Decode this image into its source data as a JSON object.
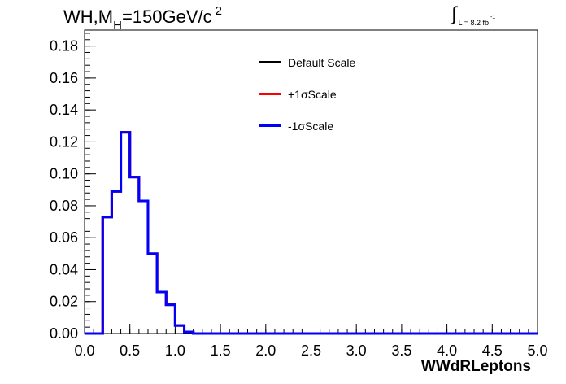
{
  "title": {
    "main": "WH,M",
    "subscript": "H",
    "value": "=150GeV/c",
    "superscript": "2"
  },
  "luminosity": {
    "integral_symbol": "∫",
    "text": "L = 8.2 fb",
    "exponent": "-1"
  },
  "colors": {
    "default": "#000000",
    "plus": "#ff0000",
    "minus": "#0000ff",
    "axis": "#000000"
  },
  "legend": [
    {
      "label": "Default Scale",
      "color": "#000000"
    },
    {
      "label": "+1σScale",
      "color": "#ff0000"
    },
    {
      "label": "-1σScale",
      "color": "#0000ff"
    }
  ],
  "chart_data": {
    "type": "line",
    "style": "step-histogram",
    "title": "WH,MH=150GeV/c2",
    "xlabel": "WWdRLeptons",
    "ylabel": "",
    "xlim": [
      0.0,
      5.0
    ],
    "ylim": [
      0.0,
      0.19
    ],
    "xticks": [
      "0.0",
      "0.5",
      "1.0",
      "1.5",
      "2.0",
      "2.5",
      "3.0",
      "3.5",
      "4.0",
      "4.5",
      "5.0"
    ],
    "yticks": [
      "0.00",
      "0.02",
      "0.04",
      "0.06",
      "0.08",
      "0.10",
      "0.12",
      "0.14",
      "0.16",
      "0.18"
    ],
    "bin_width": 0.1,
    "bin_edges_start": 0.0,
    "series": [
      {
        "name": "Default Scale",
        "color": "#000000",
        "values": [
          0,
          0,
          0.073,
          0.089,
          0.126,
          0.098,
          0.083,
          0.05,
          0.026,
          0.018,
          0.005,
          0.001,
          0,
          0,
          0,
          0,
          0,
          0,
          0,
          0,
          0,
          0,
          0,
          0,
          0,
          0,
          0,
          0,
          0,
          0,
          0,
          0,
          0,
          0,
          0,
          0,
          0,
          0,
          0,
          0,
          0,
          0,
          0,
          0,
          0,
          0,
          0,
          0,
          0,
          0
        ]
      },
      {
        "name": "+1σScale",
        "color": "#ff0000",
        "values": [
          0,
          0,
          0.073,
          0.089,
          0.126,
          0.098,
          0.083,
          0.05,
          0.026,
          0.018,
          0.005,
          0.001,
          0,
          0,
          0,
          0,
          0,
          0,
          0,
          0,
          0,
          0,
          0,
          0,
          0,
          0,
          0,
          0,
          0,
          0,
          0,
          0,
          0,
          0,
          0,
          0,
          0,
          0,
          0,
          0,
          0,
          0,
          0,
          0,
          0,
          0,
          0,
          0,
          0,
          0
        ]
      },
      {
        "name": "-1σScale",
        "color": "#0000ff",
        "values": [
          0,
          0,
          0.073,
          0.089,
          0.126,
          0.098,
          0.083,
          0.05,
          0.026,
          0.018,
          0.005,
          0.001,
          0,
          0,
          0,
          0,
          0,
          0,
          0,
          0,
          0,
          0,
          0,
          0,
          0,
          0,
          0,
          0,
          0,
          0,
          0,
          0,
          0,
          0,
          0,
          0,
          0,
          0,
          0,
          0,
          0,
          0,
          0,
          0,
          0,
          0,
          0,
          0,
          0,
          0
        ]
      }
    ],
    "grid": false,
    "legend_position": "top-center"
  }
}
